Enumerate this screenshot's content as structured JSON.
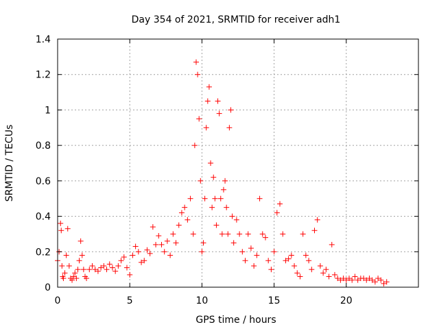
{
  "chart_data": {
    "type": "scatter",
    "title": "Day 354 of 2021, SRMTID for receiver adh1",
    "xlabel": "GPS time / hours",
    "ylabel": "SRMTID / TECUs",
    "xlim": [
      0,
      25
    ],
    "ylim": [
      0,
      1.4
    ],
    "xticks": [
      0,
      5,
      10,
      15,
      20
    ],
    "xtick_labels": [
      "0",
      "5",
      "10",
      "15",
      "20"
    ],
    "yticks": [
      0,
      0.2,
      0.4,
      0.6,
      0.8,
      1.0,
      1.2,
      1.4
    ],
    "ytick_labels": [
      "0",
      "0.2",
      "0.4",
      "0.6",
      "0.8",
      "1",
      "1.2",
      "1.4"
    ],
    "grid": true,
    "marker": "+",
    "series": [
      {
        "name": "SRMTID adh1",
        "color": "#ff0000",
        "x": [
          0.0,
          0.1,
          0.2,
          0.25,
          0.3,
          0.35,
          0.4,
          0.5,
          0.6,
          0.7,
          0.8,
          0.9,
          1.0,
          1.1,
          1.2,
          1.3,
          1.4,
          1.5,
          1.6,
          1.7,
          1.8,
          1.9,
          2.0,
          2.2,
          2.4,
          2.6,
          2.8,
          3.0,
          3.2,
          3.4,
          3.6,
          3.8,
          4.0,
          4.2,
          4.4,
          4.6,
          4.8,
          5.0,
          5.2,
          5.4,
          5.6,
          5.8,
          6.0,
          6.2,
          6.4,
          6.6,
          6.8,
          7.0,
          7.2,
          7.4,
          7.6,
          7.8,
          8.0,
          8.2,
          8.4,
          8.6,
          8.8,
          9.0,
          9.2,
          9.4,
          9.5,
          9.6,
          9.7,
          9.8,
          9.9,
          10.0,
          10.1,
          10.2,
          10.3,
          10.4,
          10.5,
          10.6,
          10.7,
          10.8,
          10.9,
          11.0,
          11.1,
          11.2,
          11.3,
          11.4,
          11.5,
          11.6,
          11.7,
          11.8,
          11.9,
          12.0,
          12.1,
          12.2,
          12.4,
          12.6,
          12.8,
          13.0,
          13.2,
          13.4,
          13.6,
          13.8,
          14.0,
          14.2,
          14.4,
          14.6,
          14.8,
          15.0,
          15.2,
          15.4,
          15.6,
          15.8,
          16.0,
          16.2,
          16.4,
          16.6,
          16.8,
          17.0,
          17.2,
          17.4,
          17.6,
          17.8,
          18.0,
          18.2,
          18.4,
          18.6,
          18.8,
          19.0,
          19.2,
          19.4,
          19.6,
          19.8,
          20.0,
          20.2,
          20.4,
          20.6,
          20.8,
          21.0,
          21.2,
          21.4,
          21.6,
          21.8,
          22.0,
          22.2,
          22.4,
          22.6,
          22.8
        ],
        "y": [
          0.15,
          0.2,
          0.36,
          0.32,
          0.12,
          0.06,
          0.05,
          0.08,
          0.18,
          0.33,
          0.12,
          0.05,
          0.04,
          0.06,
          0.08,
          0.05,
          0.1,
          0.15,
          0.26,
          0.18,
          0.1,
          0.06,
          0.05,
          0.1,
          0.12,
          0.1,
          0.09,
          0.11,
          0.12,
          0.1,
          0.13,
          0.11,
          0.09,
          0.12,
          0.15,
          0.17,
          0.11,
          0.07,
          0.18,
          0.23,
          0.2,
          0.14,
          0.15,
          0.21,
          0.19,
          0.34,
          0.24,
          0.29,
          0.24,
          0.2,
          0.26,
          0.18,
          0.3,
          0.25,
          0.35,
          0.42,
          0.45,
          0.38,
          0.5,
          0.3,
          0.8,
          1.27,
          1.2,
          0.95,
          0.6,
          0.2,
          0.25,
          0.5,
          0.9,
          1.05,
          1.13,
          0.7,
          0.45,
          0.62,
          0.5,
          0.35,
          1.05,
          0.98,
          0.5,
          0.3,
          0.55,
          0.6,
          0.45,
          0.3,
          0.9,
          1.0,
          0.4,
          0.25,
          0.38,
          0.3,
          0.2,
          0.15,
          0.3,
          0.22,
          0.12,
          0.18,
          0.5,
          0.3,
          0.28,
          0.15,
          0.1,
          0.2,
          0.42,
          0.47,
          0.3,
          0.15,
          0.16,
          0.18,
          0.12,
          0.08,
          0.06,
          0.3,
          0.18,
          0.15,
          0.1,
          0.32,
          0.38,
          0.12,
          0.08,
          0.1,
          0.06,
          0.24,
          0.07,
          0.05,
          0.04,
          0.05,
          0.04,
          0.05,
          0.04,
          0.06,
          0.04,
          0.05,
          0.05,
          0.04,
          0.05,
          0.04,
          0.03,
          0.05,
          0.04,
          0.02,
          0.03
        ]
      }
    ]
  }
}
